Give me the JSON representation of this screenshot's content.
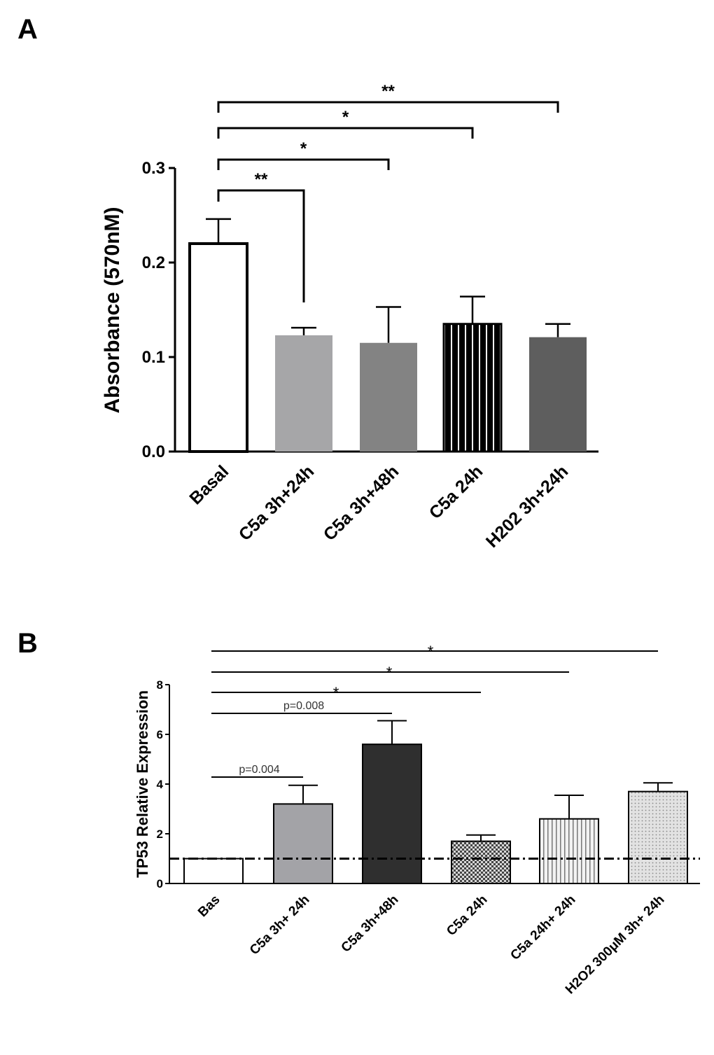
{
  "panels": {
    "a": {
      "letter": "A"
    },
    "b": {
      "letter": "B"
    }
  },
  "chart_data": [
    {
      "type": "bar",
      "panel": "A",
      "title": "",
      "xlabel": "",
      "ylabel": "Absorbance (570nM)",
      "ylim": [
        0,
        0.3
      ],
      "yticks": [
        0.0,
        0.1,
        0.2,
        0.3
      ],
      "ytick_labels": [
        "0.0",
        "0.1",
        "0.2",
        "0.3"
      ],
      "categories": [
        "Basal",
        "C5a 3h+24h",
        "C5a 3h+48h",
        "C5a 24h",
        "H202 3h+24h"
      ],
      "values": [
        0.22,
        0.123,
        0.115,
        0.135,
        0.121
      ],
      "errors": [
        0.026,
        0.008,
        0.038,
        0.029,
        0.014
      ],
      "bar_styles": [
        "open",
        "light-gray",
        "mid-gray",
        "black-vertical-stripes",
        "dark-gray"
      ],
      "significance": [
        {
          "from": 0,
          "to": 1,
          "label": "**"
        },
        {
          "from": 0,
          "to": 2,
          "label": "*"
        },
        {
          "from": 0,
          "to": 3,
          "label": "*"
        },
        {
          "from": 0,
          "to": 4,
          "label": "**"
        }
      ]
    },
    {
      "type": "bar",
      "panel": "B",
      "title": "",
      "xlabel": "",
      "ylabel": "TP53 Relative Expression",
      "ylim": [
        0,
        8
      ],
      "yticks": [
        0,
        2,
        4,
        6,
        8
      ],
      "ytick_labels": [
        "0",
        "2",
        "4",
        "6",
        "8"
      ],
      "categories": [
        "Bas",
        "C5a 3h+ 24h",
        "C5a 3h+48h",
        "C5a 24h",
        "C5a 24h+ 24h",
        "H2O2 300μM 3h+ 24h"
      ],
      "values": [
        1.0,
        3.2,
        5.6,
        1.7,
        2.6,
        3.7
      ],
      "errors": [
        0,
        0.75,
        0.95,
        0.25,
        0.95,
        0.35
      ],
      "bar_styles": [
        "open",
        "gray",
        "dark",
        "checker",
        "vertical-stripes",
        "dotted"
      ],
      "reference_line": 1.0,
      "significance": [
        {
          "from": 0,
          "to": 1,
          "label": "p=0.004"
        },
        {
          "from": 0,
          "to": 2,
          "label": "p=0.008"
        },
        {
          "from": 0,
          "to": 3,
          "label": "*"
        },
        {
          "from": 0,
          "to": 4,
          "label": "*"
        },
        {
          "from": 0,
          "to": 5,
          "label": "*"
        }
      ]
    }
  ]
}
